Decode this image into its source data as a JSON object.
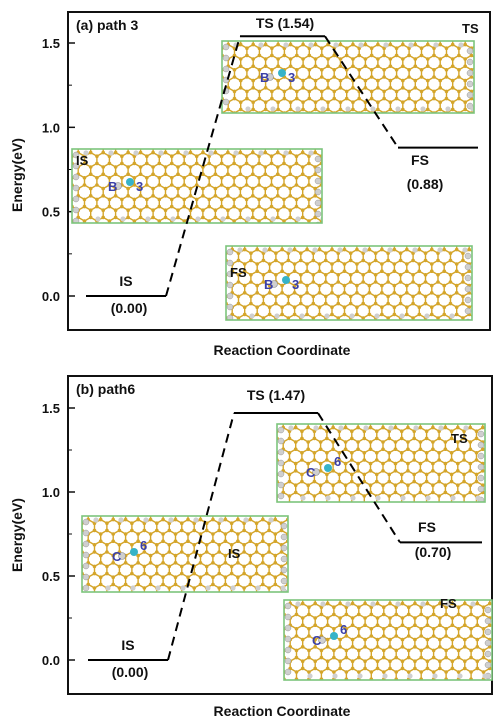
{
  "colors": {
    "frame": "#111111",
    "level_line": "#000000",
    "inset_border": "#7cc47c",
    "atom_gold": "#d4a52a",
    "atom_white": "#cfcfcf",
    "atom_cyan": "#36b3c8",
    "label_blue": "#3a3fa8"
  },
  "chart_data": [
    {
      "type": "line",
      "panel_label": "(a) path 3",
      "xlabel": "Reaction Coordinate",
      "ylabel": "Energy(eV)",
      "ylim": [
        -0.25,
        1.8
      ],
      "yticks": [
        "0.0",
        "0.5",
        "1.0",
        "1.5"
      ],
      "ytick_values": [
        0.0,
        0.5,
        1.0,
        1.5
      ],
      "states": [
        {
          "name": "IS",
          "energy": 0.0,
          "name_label": "IS",
          "value_label": "(0.00)"
        },
        {
          "name": "TS",
          "energy": 1.54,
          "name_label": "TS (1.54)",
          "value_label": ""
        },
        {
          "name": "FS",
          "energy": 0.88,
          "name_label": "FS",
          "value_label": "(0.88)"
        }
      ],
      "insets": [
        {
          "label": "IS",
          "atom_letter": "B",
          "site_label": "3"
        },
        {
          "label": "TS",
          "atom_letter": "B",
          "site_label": "3"
        },
        {
          "label": "FS",
          "atom_letter": "B",
          "site_label": "3"
        }
      ]
    },
    {
      "type": "line",
      "panel_label": "(b) path6",
      "xlabel": "Reaction Coordinate",
      "ylabel": "Energy(eV)",
      "ylim": [
        -0.25,
        1.8
      ],
      "yticks": [
        "0.0",
        "0.5",
        "1.0",
        "1.5"
      ],
      "ytick_values": [
        0.0,
        0.5,
        1.0,
        1.5
      ],
      "states": [
        {
          "name": "IS",
          "energy": 0.0,
          "name_label": "IS",
          "value_label": "(0.00)"
        },
        {
          "name": "TS",
          "energy": 1.47,
          "name_label": "TS (1.47)",
          "value_label": ""
        },
        {
          "name": "FS",
          "energy": 0.7,
          "name_label": "FS",
          "value_label": "(0.70)"
        }
      ],
      "insets": [
        {
          "label": "IS",
          "atom_letter": "C",
          "site_label": "6"
        },
        {
          "label": "TS",
          "atom_letter": "C",
          "site_label": "6"
        },
        {
          "label": "FS",
          "atom_letter": "C",
          "site_label": "6"
        }
      ]
    }
  ]
}
